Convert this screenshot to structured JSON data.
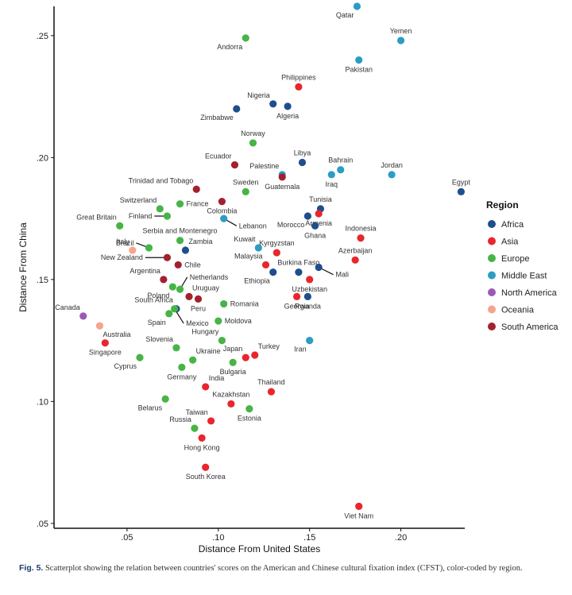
{
  "caption": {
    "label": "Fig. 5.",
    "text": "Scatterplot showing the relation between countries' scores on the American and Chinese cultural fixation index (CFST), color-coded by region."
  },
  "chart_data": {
    "type": "scatter",
    "xlabel": "Distance From United States",
    "ylabel": "Distance From China",
    "xlim": [
      0.01,
      0.235
    ],
    "ylim": [
      0.048,
      0.262
    ],
    "xticks": [
      {
        "v": 0.05,
        "label": ".05"
      },
      {
        "v": 0.1,
        "label": ".10"
      },
      {
        "v": 0.15,
        "label": ".15"
      },
      {
        "v": 0.2,
        "label": ".20"
      }
    ],
    "yticks": [
      {
        "v": 0.05,
        "label": ".05"
      },
      {
        "v": 0.1,
        "label": ".10"
      },
      {
        "v": 0.15,
        "label": ".15"
      },
      {
        "v": 0.2,
        "label": ".20"
      },
      {
        "v": 0.25,
        "label": ".25"
      }
    ],
    "legend": {
      "title": "Region",
      "position": "right",
      "entries": [
        {
          "name": "Africa",
          "color": "#1f4e8c"
        },
        {
          "name": "Asia",
          "color": "#e8262d"
        },
        {
          "name": "Europe",
          "color": "#46b446"
        },
        {
          "name": "Middle East",
          "color": "#2d9cc3"
        },
        {
          "name": "North America",
          "color": "#9b59b6"
        },
        {
          "name": "Oceania",
          "color": "#f4a58a"
        },
        {
          "name": "South America",
          "color": "#a3212f"
        }
      ]
    },
    "points": [
      {
        "country": "Qatar",
        "region": "Middle East",
        "x": 0.176,
        "y": 0.262,
        "pos": "bl"
      },
      {
        "country": "Yemen",
        "region": "Middle East",
        "x": 0.2,
        "y": 0.248,
        "pos": "t"
      },
      {
        "country": "Pakistan",
        "region": "Middle East",
        "x": 0.177,
        "y": 0.24,
        "pos": "b"
      },
      {
        "country": "Andorra",
        "region": "Europe",
        "x": 0.115,
        "y": 0.249,
        "pos": "bl"
      },
      {
        "country": "Philippines",
        "region": "Asia",
        "x": 0.144,
        "y": 0.229,
        "pos": "t"
      },
      {
        "country": "Nigeria",
        "region": "Africa",
        "x": 0.13,
        "y": 0.222,
        "pos": "tl"
      },
      {
        "country": "Algeria",
        "region": "Africa",
        "x": 0.138,
        "y": 0.221,
        "pos": "b"
      },
      {
        "country": "Zimbabwe",
        "region": "Africa",
        "x": 0.11,
        "y": 0.22,
        "pos": "bl"
      },
      {
        "country": "Norway",
        "region": "Europe",
        "x": 0.119,
        "y": 0.206,
        "pos": "t"
      },
      {
        "country": "Libya",
        "region": "Africa",
        "x": 0.146,
        "y": 0.198,
        "pos": "t"
      },
      {
        "country": "Ecuador",
        "region": "South America",
        "x": 0.109,
        "y": 0.197,
        "pos": "tl"
      },
      {
        "country": "Palestine",
        "region": "Middle East",
        "x": 0.135,
        "y": 0.193,
        "pos": "tl"
      },
      {
        "country": "Guatemala",
        "region": "South America",
        "x": 0.135,
        "y": 0.192,
        "pos": "b"
      },
      {
        "country": "Bahrain",
        "region": "Middle East",
        "x": 0.167,
        "y": 0.195,
        "pos": "t"
      },
      {
        "country": "Iraq",
        "region": "Middle East",
        "x": 0.162,
        "y": 0.193,
        "pos": "b"
      },
      {
        "country": "Jordan",
        "region": "Middle East",
        "x": 0.195,
        "y": 0.193,
        "pos": "t"
      },
      {
        "country": "Egypt",
        "region": "Africa",
        "x": 0.233,
        "y": 0.186,
        "pos": "t"
      },
      {
        "country": "Trinidad and Tobago",
        "region": "South America",
        "x": 0.088,
        "y": 0.187,
        "pos": "tl"
      },
      {
        "country": "Sweden",
        "region": "Europe",
        "x": 0.115,
        "y": 0.186,
        "pos": "t"
      },
      {
        "country": "Switzerland",
        "region": "Europe",
        "x": 0.068,
        "y": 0.179,
        "pos": "tl"
      },
      {
        "country": "France",
        "region": "Europe",
        "x": 0.079,
        "y": 0.181,
        "pos": "r"
      },
      {
        "country": "Colombia",
        "region": "South America",
        "x": 0.102,
        "y": 0.182,
        "pos": "b"
      },
      {
        "country": "Lebanon",
        "region": "Middle East",
        "x": 0.103,
        "y": 0.175,
        "pos": "lead",
        "lx": 0.11,
        "ly": 0.172
      },
      {
        "country": "Tunisia",
        "region": "Africa",
        "x": 0.156,
        "y": 0.179,
        "pos": "t"
      },
      {
        "country": "Armenia",
        "region": "Asia",
        "x": 0.155,
        "y": 0.177,
        "pos": "b"
      },
      {
        "country": "Morocco",
        "region": "Africa",
        "x": 0.149,
        "y": 0.176,
        "pos": "bl"
      },
      {
        "country": "Ghana",
        "region": "Africa",
        "x": 0.153,
        "y": 0.172,
        "pos": "b"
      },
      {
        "country": "Great Britain",
        "region": "Europe",
        "x": 0.046,
        "y": 0.172,
        "pos": "tl"
      },
      {
        "country": "Finland",
        "region": "Europe",
        "x": 0.072,
        "y": 0.176,
        "pos": "lead",
        "lx": 0.065,
        "ly": 0.176
      },
      {
        "country": "Serbia and Montenegro",
        "region": "Europe",
        "x": 0.079,
        "y": 0.166,
        "pos": "t"
      },
      {
        "country": "Indonesia",
        "region": "Asia",
        "x": 0.178,
        "y": 0.167,
        "pos": "t"
      },
      {
        "country": "Italy",
        "region": "Oceania",
        "x": 0.053,
        "y": 0.162,
        "pos": "tl"
      },
      {
        "country": "Brazil",
        "region": "Europe",
        "x": 0.062,
        "y": 0.163,
        "pos": "lead",
        "lx": 0.055,
        "ly": 0.165
      },
      {
        "country": "Zambia",
        "region": "Africa",
        "x": 0.082,
        "y": 0.162,
        "pos": "tr"
      },
      {
        "country": "Kuwait",
        "region": "Middle East",
        "x": 0.122,
        "y": 0.163,
        "pos": "tl"
      },
      {
        "country": "Kyrgyzstan",
        "region": "Asia",
        "x": 0.132,
        "y": 0.161,
        "pos": "t"
      },
      {
        "country": "Azerbaijan",
        "region": "Asia",
        "x": 0.175,
        "y": 0.158,
        "pos": "t"
      },
      {
        "country": "New Zealand",
        "region": "South America",
        "x": 0.072,
        "y": 0.159,
        "pos": "lead",
        "lx": 0.06,
        "ly": 0.159
      },
      {
        "country": "Chile",
        "region": "South America",
        "x": 0.078,
        "y": 0.156,
        "pos": "r"
      },
      {
        "country": "Malaysia",
        "region": "Asia",
        "x": 0.126,
        "y": 0.156,
        "pos": "tl"
      },
      {
        "country": "Burkina Faso",
        "region": "Africa",
        "x": 0.144,
        "y": 0.153,
        "pos": "t"
      },
      {
        "country": "Ethiopia",
        "region": "Africa",
        "x": 0.13,
        "y": 0.153,
        "pos": "bl"
      },
      {
        "country": "Mali",
        "region": "Africa",
        "x": 0.155,
        "y": 0.155,
        "pos": "lead",
        "lx": 0.163,
        "ly": 0.152
      },
      {
        "country": "Argentina",
        "region": "South America",
        "x": 0.07,
        "y": 0.15,
        "pos": "tl"
      },
      {
        "country": "Netherlands",
        "region": "Europe",
        "x": 0.079,
        "y": 0.146,
        "pos": "lead",
        "lx": 0.083,
        "ly": 0.151
      },
      {
        "country": "Uzbekistan",
        "region": "Asia",
        "x": 0.15,
        "y": 0.15,
        "pos": "b"
      },
      {
        "country": "Poland",
        "region": "Europe",
        "x": 0.075,
        "y": 0.147,
        "pos": "bl"
      },
      {
        "country": "Uruguay",
        "region": "South America",
        "x": 0.084,
        "y": 0.143,
        "pos": "tr"
      },
      {
        "country": "Peru",
        "region": "South America",
        "x": 0.089,
        "y": 0.142,
        "pos": "b"
      },
      {
        "country": "Georgia",
        "region": "Asia",
        "x": 0.143,
        "y": 0.143,
        "pos": "b"
      },
      {
        "country": "Rwanda",
        "region": "Africa",
        "x": 0.149,
        "y": 0.143,
        "pos": "b"
      },
      {
        "country": "South Africa",
        "region": "Africa",
        "x": 0.077,
        "y": 0.138,
        "pos": "tl"
      },
      {
        "country": "Romania",
        "region": "Europe",
        "x": 0.103,
        "y": 0.14,
        "pos": "r"
      },
      {
        "country": "Canada",
        "region": "North America",
        "x": 0.026,
        "y": 0.135,
        "pos": "tl"
      },
      {
        "country": "Spain",
        "region": "Europe",
        "x": 0.073,
        "y": 0.136,
        "pos": "bl"
      },
      {
        "country": "Mexico",
        "region": "Europe",
        "x": 0.076,
        "y": 0.138,
        "pos": "lead",
        "lx": 0.081,
        "ly": 0.132
      },
      {
        "country": "Moldova",
        "region": "Europe",
        "x": 0.1,
        "y": 0.133,
        "pos": "r"
      },
      {
        "country": "Australia",
        "region": "Oceania",
        "x": 0.035,
        "y": 0.131,
        "pos": "br"
      },
      {
        "country": "Hungary",
        "region": "Europe",
        "x": 0.102,
        "y": 0.125,
        "pos": "tl"
      },
      {
        "country": "Iran",
        "region": "Middle East",
        "x": 0.15,
        "y": 0.125,
        "pos": "bl"
      },
      {
        "country": "Singapore",
        "region": "Asia",
        "x": 0.038,
        "y": 0.124,
        "pos": "b"
      },
      {
        "country": "Slovenia",
        "region": "Europe",
        "x": 0.077,
        "y": 0.122,
        "pos": "tl"
      },
      {
        "country": "Ukraine",
        "region": "Europe",
        "x": 0.086,
        "y": 0.117,
        "pos": "tr"
      },
      {
        "country": "Japan",
        "region": "Asia",
        "x": 0.115,
        "y": 0.118,
        "pos": "tl"
      },
      {
        "country": "Turkey",
        "region": "Asia",
        "x": 0.12,
        "y": 0.119,
        "pos": "tr"
      },
      {
        "country": "Cyprus",
        "region": "Europe",
        "x": 0.057,
        "y": 0.118,
        "pos": "bl"
      },
      {
        "country": "Bulgaria",
        "region": "Europe",
        "x": 0.108,
        "y": 0.116,
        "pos": "b"
      },
      {
        "country": "Germany",
        "region": "Europe",
        "x": 0.08,
        "y": 0.114,
        "pos": "b"
      },
      {
        "country": "India",
        "region": "Asia",
        "x": 0.093,
        "y": 0.106,
        "pos": "tr"
      },
      {
        "country": "Thailand",
        "region": "Asia",
        "x": 0.129,
        "y": 0.104,
        "pos": "t"
      },
      {
        "country": "Kazakhstan",
        "region": "Asia",
        "x": 0.107,
        "y": 0.099,
        "pos": "t"
      },
      {
        "country": "Belarus",
        "region": "Europe",
        "x": 0.071,
        "y": 0.101,
        "pos": "bl"
      },
      {
        "country": "Estonia",
        "region": "Europe",
        "x": 0.117,
        "y": 0.097,
        "pos": "b"
      },
      {
        "country": "Taiwan",
        "region": "Asia",
        "x": 0.096,
        "y": 0.092,
        "pos": "tl"
      },
      {
        "country": "Russia",
        "region": "Europe",
        "x": 0.087,
        "y": 0.089,
        "pos": "tl"
      },
      {
        "country": "Hong Kong",
        "region": "Asia",
        "x": 0.091,
        "y": 0.085,
        "pos": "b"
      },
      {
        "country": "South Korea",
        "region": "Asia",
        "x": 0.093,
        "y": 0.073,
        "pos": "b"
      },
      {
        "country": "Viet Nam",
        "region": "Asia",
        "x": 0.177,
        "y": 0.057,
        "pos": "b"
      }
    ]
  }
}
